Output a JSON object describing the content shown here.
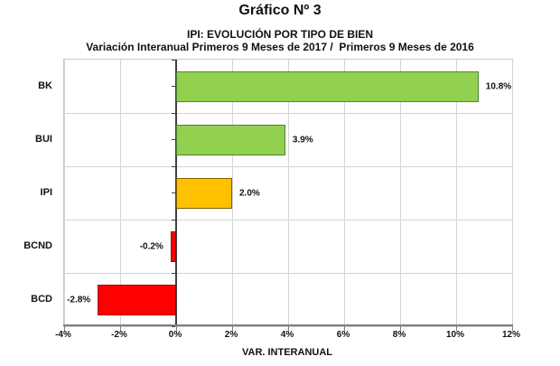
{
  "header": {
    "title": "Gráfico Nº 3",
    "subtitle_line1": "IPI: EVOLUCIÓN POR TIPO DE BIEN",
    "subtitle_line2": "Variación Interanual Primeros 9 Meses de 2017 /  Primeros 9 Meses de 2016"
  },
  "chart_data": {
    "type": "bar",
    "orientation": "horizontal",
    "title": "IPI: EVOLUCIÓN POR TIPO DE BIEN",
    "subtitle": "Variación Interanual Primeros 9 Meses de 2017 /  Primeros 9 Meses de 2016",
    "categories": [
      "BK",
      "BUI",
      "IPI",
      "BCND",
      "BCD"
    ],
    "values": [
      10.8,
      3.9,
      2.0,
      -0.2,
      -2.8
    ],
    "value_labels": [
      "10.8%",
      "3.9%",
      "2.0%",
      "-0.2%",
      "-2.8%"
    ],
    "bar_colors": [
      "#92d050",
      "#92d050",
      "#ffc000",
      "#ff0000",
      "#ff0000"
    ],
    "bar_border_colors": [
      "#538135",
      "#538135",
      "#7f6000",
      "#a00000",
      "#a00000"
    ],
    "xlabel": "VAR. INTERANUAL",
    "ylabel": "",
    "xlim": [
      -4,
      12
    ],
    "xticks": [
      -4,
      -2,
      0,
      2,
      4,
      6,
      8,
      10,
      12
    ],
    "xtick_labels": [
      "-4%",
      "-2%",
      "0%",
      "2%",
      "4%",
      "6%",
      "8%",
      "10%",
      "12%"
    ],
    "grid": true,
    "legend": false
  },
  "colors": {
    "grid": "#d4d4d4",
    "axis": "#7f7f7f",
    "zero_line": "#3f3f3f",
    "text": "#111111",
    "background": "#ffffff"
  }
}
